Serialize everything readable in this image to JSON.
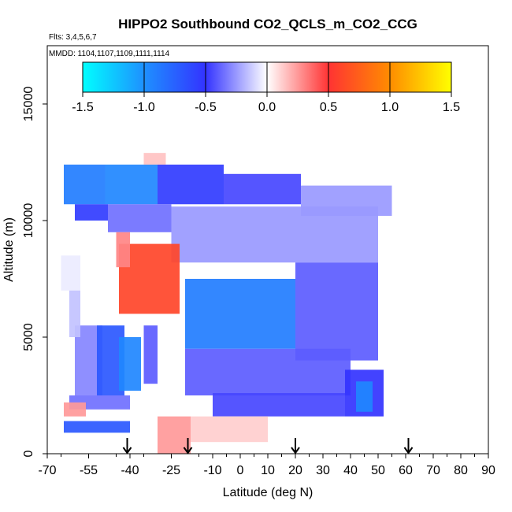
{
  "chart_data": {
    "type": "heatmap",
    "title": "HIPPO2 Southbound CO2_QCLS_m_CO2_CCG",
    "flights_label": "Flts: 3,4,5,6,7",
    "mmdd_label": "MMDD: 1104,1107,1109,1111,1114",
    "xlabel": "Latitude (deg N)",
    "ylabel": "Altitude (m)",
    "xlim": [
      -70,
      90
    ],
    "ylim": [
      0,
      17500
    ],
    "x_ticks": [
      -70,
      -55,
      -40,
      -25,
      -10,
      0,
      10,
      20,
      30,
      40,
      50,
      60,
      70,
      80,
      90
    ],
    "y_ticks": [
      0,
      5000,
      10000,
      15000
    ],
    "colorbar": {
      "range": [
        -1.5,
        1.5
      ],
      "ticks": [
        -1.5,
        -1.0,
        -0.5,
        0.0,
        0.5,
        1.0,
        1.5
      ],
      "tick_labels": [
        "-1.5",
        "-1.0",
        "-0.5",
        "0.0",
        "0.5",
        "1.0",
        "1.5"
      ],
      "colors": [
        "#00ffff",
        "#1e90ff",
        "#3333ff",
        "#ffffff",
        "#ff3333",
        "#ff8c00",
        "#ffff00"
      ]
    },
    "arrows_latitude": [
      -41,
      -19,
      20,
      61
    ],
    "regions": [
      {
        "lat": [
          -64,
          -49
        ],
        "alt": [
          10700,
          12400
        ],
        "value": -0.9
      },
      {
        "lat": [
          -49,
          -30
        ],
        "alt": [
          10700,
          12400
        ],
        "value": -0.95
      },
      {
        "lat": [
          -30,
          -6
        ],
        "alt": [
          10700,
          12400
        ],
        "value": -0.55
      },
      {
        "lat": [
          -6,
          22
        ],
        "alt": [
          10700,
          12000
        ],
        "value": -0.45
      },
      {
        "lat": [
          22,
          55
        ],
        "alt": [
          10200,
          11500
        ],
        "value": -0.25
      },
      {
        "lat": [
          -60,
          -48
        ],
        "alt": [
          10000,
          10700
        ],
        "value": -0.55
      },
      {
        "lat": [
          -48,
          -25
        ],
        "alt": [
          9500,
          10700
        ],
        "value": -0.35
      },
      {
        "lat": [
          -25,
          50
        ],
        "alt": [
          8200,
          10600
        ],
        "value": -0.25
      },
      {
        "lat": [
          -44,
          -22
        ],
        "alt": [
          6000,
          9000
        ],
        "value": 0.6
      },
      {
        "lat": [
          -45,
          -40
        ],
        "alt": [
          8000,
          9500
        ],
        "value": 0.3
      },
      {
        "lat": [
          -20,
          20
        ],
        "alt": [
          4500,
          7500
        ],
        "value": -0.9
      },
      {
        "lat": [
          20,
          50
        ],
        "alt": [
          4000,
          8200
        ],
        "value": -0.4
      },
      {
        "lat": [
          -20,
          40
        ],
        "alt": [
          2500,
          4500
        ],
        "value": -0.4
      },
      {
        "lat": [
          -60,
          -50
        ],
        "alt": [
          2500,
          5500
        ],
        "value": -0.3
      },
      {
        "lat": [
          -52,
          -42
        ],
        "alt": [
          2500,
          5500
        ],
        "value": -0.7
      },
      {
        "lat": [
          -44,
          -36
        ],
        "alt": [
          2700,
          5000
        ],
        "value": -0.95
      },
      {
        "lat": [
          -62,
          -40
        ],
        "alt": [
          1900,
          2500
        ],
        "value": -0.35
      },
      {
        "lat": [
          -10,
          38
        ],
        "alt": [
          1600,
          2600
        ],
        "value": -0.45
      },
      {
        "lat": [
          38,
          52
        ],
        "alt": [
          1600,
          3600
        ],
        "value": -0.5
      },
      {
        "lat": [
          42,
          48
        ],
        "alt": [
          1800,
          3100
        ],
        "value": -0.95
      },
      {
        "lat": [
          -35,
          -30
        ],
        "alt": [
          3000,
          5500
        ],
        "value": -0.4
      },
      {
        "lat": [
          -64,
          -56
        ],
        "alt": [
          1600,
          2200
        ],
        "value": 0.25
      },
      {
        "lat": [
          -64,
          -40
        ],
        "alt": [
          900,
          1400
        ],
        "value": -0.7
      },
      {
        "lat": [
          -30,
          -18
        ],
        "alt": [
          0,
          1600
        ],
        "value": 0.25
      },
      {
        "lat": [
          -18,
          10
        ],
        "alt": [
          500,
          1600
        ],
        "value": 0.12
      },
      {
        "lat": [
          -65,
          -58
        ],
        "alt": [
          7000,
          8500
        ],
        "value": -0.05
      },
      {
        "lat": [
          -62,
          -58
        ],
        "alt": [
          5000,
          7000
        ],
        "value": -0.15
      },
      {
        "lat": [
          -35,
          -27
        ],
        "alt": [
          12400,
          12900
        ],
        "value": 0.15
      }
    ]
  }
}
